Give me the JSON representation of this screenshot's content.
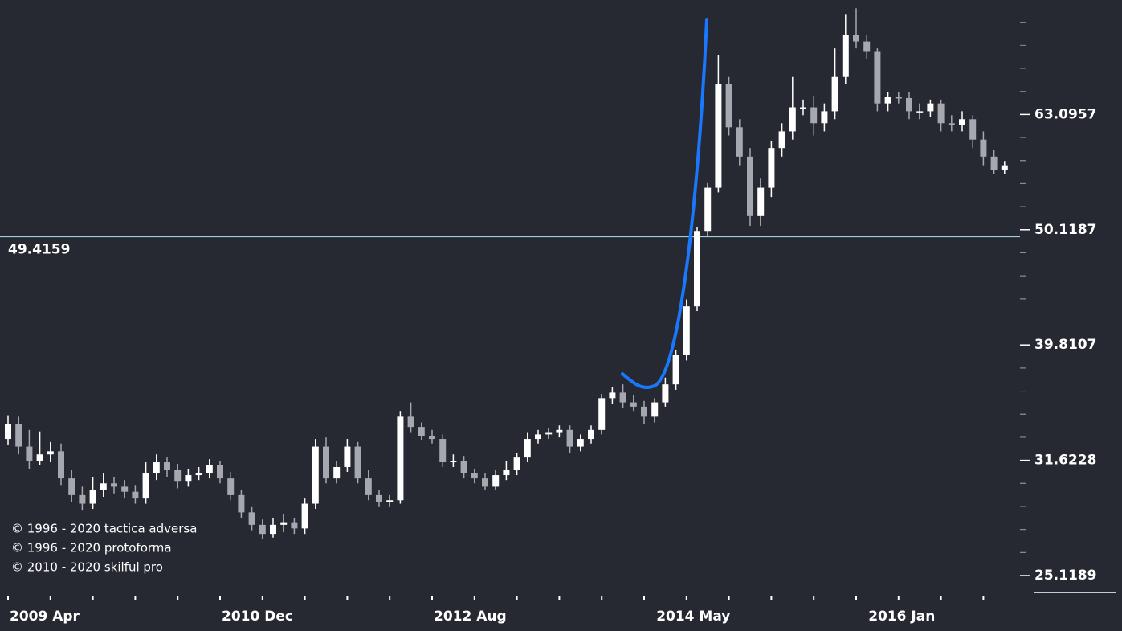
{
  "chart_data": {
    "type": "candlestick",
    "categories": [
      "2009 Apr",
      null,
      null,
      null,
      null,
      null,
      null,
      null,
      null,
      null,
      null,
      null,
      null,
      null,
      null,
      null,
      null,
      null,
      null,
      null,
      "2010 Dec",
      null,
      null,
      null,
      null,
      null,
      null,
      null,
      null,
      null,
      null,
      null,
      null,
      null,
      null,
      null,
      null,
      null,
      null,
      null,
      "2012 Aug",
      null,
      null,
      null,
      null,
      null,
      null,
      null,
      null,
      null,
      null,
      null,
      null,
      null,
      null,
      null,
      null,
      null,
      null,
      null,
      null,
      "2014 May",
      null,
      null,
      null,
      null,
      null,
      null,
      null,
      null,
      null,
      null,
      null,
      null,
      null,
      null,
      null,
      null,
      null,
      null,
      null,
      "2016 Jan",
      null,
      null,
      null,
      null,
      null,
      null,
      null,
      null,
      null,
      null,
      null,
      null,
      null
    ],
    "open": [
      33,
      34,
      32.5,
      31.6,
      32,
      32.2,
      30.5,
      29.5,
      29,
      29.8,
      30.2,
      30,
      29.7,
      29.3,
      30.8,
      31.5,
      31,
      30.3,
      30.7,
      30.8,
      31.3,
      30.5,
      29.5,
      28.5,
      27.8,
      27.3,
      27.8,
      27.9,
      27.6,
      29,
      32.5,
      30.5,
      31.2,
      32.5,
      30.5,
      29.5,
      29.1,
      29.2,
      34.5,
      33.8,
      33.2,
      33,
      31.5,
      31.6,
      30.8,
      30.5,
      30,
      30.7,
      31,
      31.8,
      33,
      33.3,
      33.4,
      33.6,
      32.5,
      33,
      33.6,
      35.8,
      36.2,
      35.5,
      35.2,
      34.5,
      35.5,
      36.8,
      39,
      43,
      50,
      54.5,
      67,
      61.5,
      58,
      51.5,
      54.5,
      59,
      61,
      64,
      64,
      62,
      63.5,
      68,
      74,
      73,
      71.5,
      64.5,
      65.3,
      65.2,
      63.5,
      63.5,
      64.5,
      62,
      61.8,
      62.5,
      60,
      58,
      56.5
    ],
    "high": [
      34.6,
      34.5,
      33.6,
      33.5,
      32.8,
      32.7,
      31,
      30,
      30.6,
      30.8,
      30.6,
      30.4,
      30.1,
      31.5,
      32,
      31.8,
      31.4,
      31.1,
      31.2,
      31.7,
      31.6,
      30.9,
      29.8,
      28.8,
      28.1,
      28.2,
      28.4,
      28.2,
      29.3,
      33,
      33.1,
      31.6,
      33,
      32.8,
      31,
      29.8,
      29.5,
      34.9,
      35.5,
      34.1,
      33.6,
      33.3,
      32,
      31.9,
      31.1,
      30.8,
      31,
      31.6,
      32.1,
      33.4,
      33.6,
      33.7,
      33.9,
      33.9,
      33.3,
      33.9,
      36.1,
      36.6,
      36.8,
      36,
      35.6,
      35.8,
      37.3,
      39.4,
      43.6,
      50.4,
      55,
      71,
      68,
      62.5,
      59,
      55.5,
      59.8,
      62,
      68,
      65,
      65.5,
      64.5,
      72,
      77,
      78,
      74,
      72,
      66,
      66,
      66,
      64.5,
      65,
      65,
      63,
      63.5,
      63,
      61,
      58.8,
      57.5
    ],
    "low": [
      32.6,
      32,
      31.1,
      31.3,
      31.5,
      30.1,
      29.1,
      28.6,
      28.7,
      29.4,
      29.6,
      29.3,
      29,
      29,
      30.4,
      30.6,
      29.9,
      30,
      30.4,
      30.5,
      30.2,
      29.2,
      28.2,
      27.5,
      27,
      27.1,
      27.4,
      27.3,
      27.3,
      28.7,
      30.2,
      30.2,
      30.9,
      30.2,
      29.2,
      28.8,
      28.8,
      29,
      33.4,
      32.9,
      32.7,
      31.2,
      31.2,
      30.5,
      30.2,
      29.8,
      29.8,
      30.4,
      30.7,
      31.5,
      32.7,
      33,
      33.1,
      32.1,
      32.2,
      32.7,
      33.3,
      35.4,
      35.1,
      34.9,
      34,
      34.1,
      35.2,
      36.4,
      38.6,
      42.6,
      49.5,
      54,
      60.5,
      57,
      50.5,
      50.5,
      53.5,
      58,
      60,
      63,
      60.5,
      61,
      62.5,
      67,
      72,
      70.5,
      63.5,
      63.5,
      64.5,
      62.5,
      62.5,
      62.8,
      61,
      61,
      61,
      59,
      57,
      56,
      56
    ],
    "close": [
      34,
      32.5,
      31.6,
      32,
      32.2,
      30.5,
      29.5,
      29,
      29.8,
      30.2,
      30,
      29.7,
      29.3,
      30.8,
      31.5,
      31,
      30.3,
      30.7,
      30.8,
      31.3,
      30.5,
      29.5,
      28.5,
      27.8,
      27.3,
      27.8,
      27.9,
      27.6,
      29,
      32.5,
      30.5,
      31.2,
      32.5,
      30.5,
      29.5,
      29.1,
      29.2,
      34.5,
      33.8,
      33.2,
      33,
      31.5,
      31.6,
      30.8,
      30.5,
      30,
      30.7,
      31,
      31.8,
      33,
      33.3,
      33.4,
      33.6,
      32.5,
      33,
      33.6,
      35.8,
      36.2,
      35.5,
      35.2,
      34.5,
      35.5,
      36.8,
      39,
      43,
      50,
      54.5,
      67,
      61.5,
      58,
      51.5,
      54.5,
      59,
      61,
      64,
      64,
      62,
      63.5,
      68,
      74,
      73,
      71.5,
      64.5,
      65.3,
      65.2,
      63.5,
      63.5,
      64.5,
      62,
      61.8,
      62.5,
      60,
      58,
      56.5,
      57
    ],
    "ylim": [
      24.17,
      79.3
    ],
    "log_scale": true,
    "yticks": [
      25.1189,
      31.6228,
      39.8107,
      50.1187,
      63.0957
    ],
    "up_color": "#ffffff",
    "down_color": "#a6a8b0",
    "hline": 49.4159,
    "hline_color": "#9fd0d8",
    "annotations": [
      "© 1996 - 2020 tactica adversa",
      "© 1996 - 2020 protoforma",
      "© 2010 - 2020 skilful pro"
    ]
  }
}
